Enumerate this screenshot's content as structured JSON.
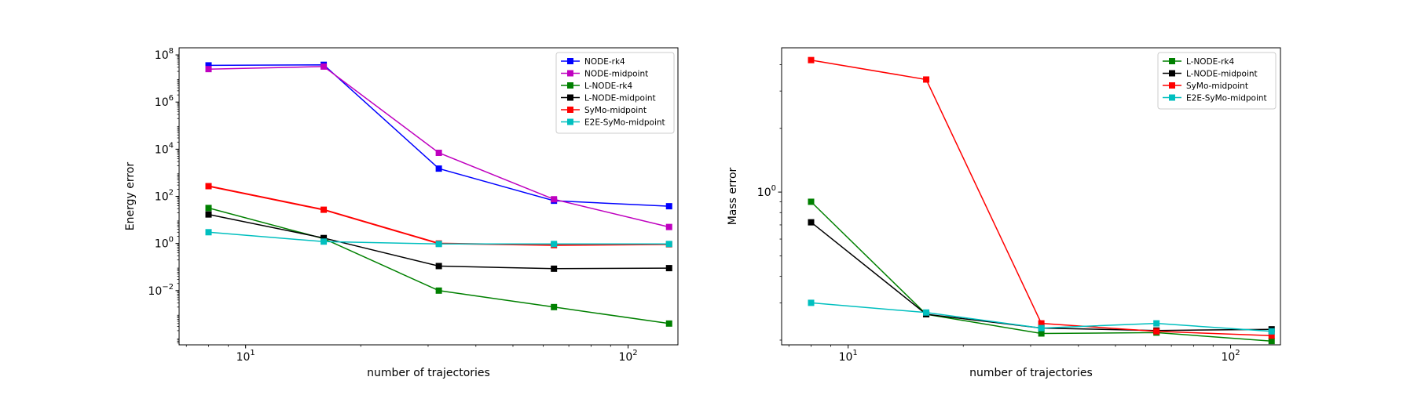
{
  "chart_data": [
    {
      "type": "line",
      "xlabel": "number of trajectories",
      "ylabel": "Energy error",
      "xscale": "log",
      "yscale": "log",
      "x": [
        8,
        16,
        32,
        64,
        128
      ],
      "xlim": [
        6.7,
        135
      ],
      "ylim": [
        5e-05,
        200000000
      ],
      "xticks": [
        {
          "value": 10,
          "base": "10",
          "exp": "1"
        },
        {
          "value": 100,
          "base": "10",
          "exp": "2"
        }
      ],
      "yticks": [
        {
          "value": 0.01,
          "base": "10",
          "exp": "−2"
        },
        {
          "value": 1,
          "base": "10",
          "exp": "0"
        },
        {
          "value": 100,
          "base": "10",
          "exp": "2"
        },
        {
          "value": 10000,
          "base": "10",
          "exp": "4"
        },
        {
          "value": 1000000,
          "base": "10",
          "exp": "6"
        },
        {
          "value": 100000000,
          "base": "10",
          "exp": "8"
        }
      ],
      "legend_position": "top-right",
      "series": [
        {
          "name": "NODE-rk4",
          "color": "#0000ff",
          "values": [
            36000000,
            38000000,
            1500,
            65,
            38
          ]
        },
        {
          "name": "NODE-midpoint",
          "color": "#bf00bf",
          "values": [
            25000000,
            32000000,
            7000,
            75,
            5
          ]
        },
        {
          "name": "L-NODE-rk4",
          "color": "#008000",
          "values": [
            32,
            1.6,
            0.01,
            0.002,
            0.0004
          ]
        },
        {
          "name": "L-NODE-midpoint",
          "color": "#000000",
          "values": [
            17,
            1.7,
            0.11,
            0.085,
            0.09
          ]
        },
        {
          "name": "SyMo-midpoint",
          "color": "#ff0000",
          "values": [
            270,
            27,
            1.0,
            0.85,
            0.92
          ]
        },
        {
          "name": "E2E-SyMo-midpoint",
          "color": "#00bfbf",
          "values": [
            3.0,
            1.2,
            0.95,
            0.95,
            0.95
          ]
        }
      ]
    },
    {
      "type": "line",
      "xlabel": "number of trajectories",
      "ylabel": "Mass error",
      "xscale": "log",
      "yscale": "log",
      "x": [
        8,
        16,
        32,
        64,
        128
      ],
      "xlim": [
        6.7,
        135
      ],
      "ylim": [
        0.19,
        4.8
      ],
      "xticks": [
        {
          "value": 10,
          "base": "10",
          "exp": "1"
        },
        {
          "value": 100,
          "base": "10",
          "exp": "2"
        }
      ],
      "yticks": [
        {
          "value": 1,
          "base": "10",
          "exp": "0"
        }
      ],
      "legend_position": "top-right",
      "series": [
        {
          "name": "L-NODE-rk4",
          "color": "#008000",
          "values": [
            0.9,
            0.265,
            0.215,
            0.217,
            0.198
          ]
        },
        {
          "name": "L-NODE-midpoint",
          "color": "#000000",
          "values": [
            0.72,
            0.265,
            0.228,
            0.222,
            0.225
          ]
        },
        {
          "name": "SyMo-midpoint",
          "color": "#ff0000",
          "values": [
            4.2,
            3.4,
            0.24,
            0.22,
            0.21
          ]
        },
        {
          "name": "E2E-SyMo-midpoint",
          "color": "#00bfbf",
          "values": [
            0.3,
            0.27,
            0.228,
            0.24,
            0.22
          ]
        }
      ]
    }
  ]
}
